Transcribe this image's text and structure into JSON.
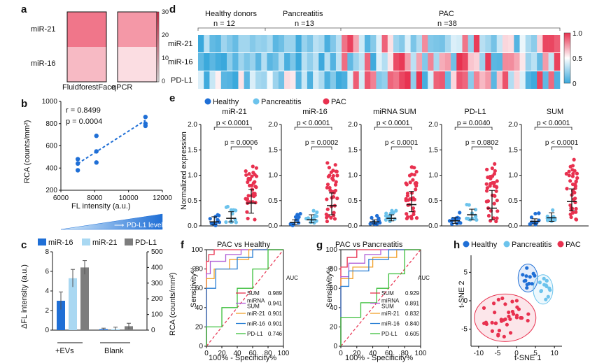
{
  "colors": {
    "healthy": "#1f6fd6",
    "pancreatitis": "#6cc3ec",
    "pac": "#e8314f",
    "heat_red": "#e8314f",
    "heat_blue": "#3aa8dc",
    "grey": "#7d7d7d",
    "light_blue": "#a9d8f2"
  },
  "panel_labels": {
    "a": "a",
    "b": "b",
    "c": "c",
    "d": "d",
    "e": "e",
    "f": "f",
    "g": "g",
    "h": "h"
  },
  "panel_a": {
    "rows": [
      "miR-21",
      "miR-16"
    ],
    "cols": [
      "FluidforestFace",
      "qPCR"
    ],
    "values": [
      [
        20,
        15
      ],
      [
        10,
        5
      ]
    ],
    "colorbar_ticks": [
      "30",
      "20",
      "10",
      "0"
    ]
  },
  "panel_b": {
    "ylabel": "RCA (counts/mm²)",
    "xlabel": "FL intensity (a.u.)",
    "r_text": "r = 0.8499",
    "p_text": "p = 0.0004",
    "xticks": [
      "6000",
      "8000",
      "10000",
      "12000"
    ],
    "yticks": [
      "200",
      "400",
      "600",
      "800",
      "1000"
    ],
    "triangle_label": "PD-L1 level"
  },
  "panel_c": {
    "legend": [
      "miR-16",
      "miR-21",
      "PD-L1"
    ],
    "ylabel_left": "ΔFL intensity (a.u.)",
    "ylabel_right": "RCA (counts/mm²)",
    "yticks_left": [
      "0",
      "2",
      "4",
      "6",
      "8"
    ],
    "yticks_right": [
      "0",
      "100",
      "200",
      "300",
      "400",
      "500"
    ],
    "groups": [
      "+EVs",
      "Blank"
    ]
  },
  "panel_d": {
    "groups": [
      {
        "name": "Healthy donors",
        "n": "n = 12"
      },
      {
        "name": "Pancreatitis",
        "n": "n =13"
      },
      {
        "name": "PAC",
        "n": "n =38"
      }
    ],
    "rows": [
      "miR-21",
      "miR-16",
      "PD-L1"
    ],
    "colorbar_ticks": [
      "1.0",
      "0.5",
      "0"
    ]
  },
  "panel_e": {
    "legend": [
      "Healthy",
      "Pancreatitis",
      "PAC"
    ],
    "ylabel": "Normalized expression",
    "yticks": [
      "0.0",
      "0.5",
      "1.0",
      "1.5",
      "2.0"
    ],
    "subplots": [
      {
        "title": "miR-21",
        "p_top": "p < 0.0001",
        "p_bottom": "p = 0.0006"
      },
      {
        "title": "miR-16",
        "p_top": "p < 0.0001",
        "p_bottom": "p = 0.0002"
      },
      {
        "title": "miRNA SUM",
        "p_top": "p < 0.0001",
        "p_bottom": "p < 0.0001"
      },
      {
        "title": "PD-L1",
        "p_top": "p = 0.0040",
        "p_bottom": "p = 0.0802"
      },
      {
        "title": "SUM",
        "p_top": "p < 0.0001",
        "p_bottom": "p < 0.0001"
      }
    ]
  },
  "panel_f": {
    "title": "PAC vs Healthy",
    "xlabel": "100% - Specificity%",
    "ylabel": "Sensitivity%",
    "ticks": [
      "0",
      "20",
      "40",
      "60",
      "80",
      "100"
    ],
    "auc_header": "AUC",
    "legend": [
      {
        "name": "SUM",
        "auc": "0.989",
        "color": "#e8314f"
      },
      {
        "name": "miRNA\nSUM",
        "auc": "0.941",
        "color": "#b05cd6"
      },
      {
        "name": "miR-21",
        "auc": "0.901",
        "color": "#f2a12b"
      },
      {
        "name": "miR-16",
        "auc": "0.901",
        "color": "#2a7fd4"
      },
      {
        "name": "PD-L1",
        "auc": "0.746",
        "color": "#3cbf3c"
      }
    ]
  },
  "panel_g": {
    "title": "PAC vs Pancreatitis",
    "xlabel": "100% - Specificity%",
    "ylabel": "Sensitivity%",
    "ticks": [
      "0",
      "20",
      "40",
      "60",
      "80",
      "100"
    ],
    "auc_header": "AUC",
    "legend": [
      {
        "name": "SUM",
        "auc": "0.929",
        "color": "#e8314f"
      },
      {
        "name": "miRNA\nSUM",
        "auc": "0.891",
        "color": "#b05cd6"
      },
      {
        "name": "miR-21",
        "auc": "0.832",
        "color": "#f2a12b"
      },
      {
        "name": "miR-16",
        "auc": "0.840",
        "color": "#2a7fd4"
      },
      {
        "name": "PD-L1",
        "auc": "0.605",
        "color": "#3cbf3c"
      }
    ]
  },
  "panel_h": {
    "legend": [
      "Healthy",
      "Pancreatitis",
      "PAC"
    ],
    "xlabel": "t-SNE 1",
    "ylabel": "t-SNE 2",
    "xticks": [
      "-10",
      "-5",
      "0",
      "5",
      "10"
    ],
    "yticks": [
      "5",
      "0",
      "-5"
    ]
  },
  "chart_data": [
    {
      "id": "a",
      "type": "heatmap",
      "rows": [
        "miR-21",
        "miR-16"
      ],
      "cols": [
        "FluidforestFace",
        "qPCR"
      ],
      "values": [
        [
          20,
          15
        ],
        [
          10,
          5
        ]
      ],
      "range": [
        0,
        30
      ]
    },
    {
      "id": "b",
      "type": "scatter",
      "x": [
        7000,
        7000,
        7000,
        8100,
        8100,
        8100,
        11000,
        11000,
        11000
      ],
      "y": [
        380,
        440,
        480,
        450,
        550,
        690,
        780,
        800,
        860
      ],
      "xlim": [
        6000,
        12000
      ],
      "ylim": [
        200,
        1000
      ],
      "fit": {
        "x": [
          7000,
          11000
        ],
        "y": [
          440,
          830
        ]
      }
    },
    {
      "id": "c",
      "type": "bar",
      "categories": [
        "+EVs",
        "Blank"
      ],
      "series": [
        {
          "name": "miR-16",
          "values": [
            3.0,
            0.1
          ],
          "err": [
            0.9,
            0.1
          ]
        },
        {
          "name": "miR-21",
          "values": [
            5.3,
            0.1
          ],
          "err": [
            0.9,
            0.2
          ]
        },
        {
          "name": "PD-L1",
          "values": [
            6.4,
            0.4
          ],
          "err": [
            0.7,
            0.3
          ]
        }
      ],
      "ylim": [
        0,
        8
      ]
    },
    {
      "id": "e",
      "type": "scatter",
      "groups": [
        "Healthy",
        "Pancreatitis",
        "PAC"
      ],
      "ylim": [
        0,
        2.0
      ],
      "subplots": [
        {
          "title": "miR-21",
          "medians": [
            0.08,
            0.15,
            0.45
          ],
          "q1": [
            0.03,
            0.08,
            0.25
          ],
          "q3": [
            0.18,
            0.28,
            0.72
          ],
          "max": [
            0.3,
            0.38,
            1.5
          ]
        },
        {
          "title": "miR-16",
          "medians": [
            0.07,
            0.12,
            0.4
          ],
          "q1": [
            0.03,
            0.06,
            0.22
          ],
          "q3": [
            0.12,
            0.22,
            0.65
          ],
          "max": [
            0.25,
            0.3,
            1.5
          ]
        },
        {
          "title": "miRNA SUM",
          "medians": [
            0.08,
            0.15,
            0.42
          ],
          "q1": [
            0.04,
            0.1,
            0.28
          ],
          "q3": [
            0.12,
            0.22,
            0.68
          ],
          "max": [
            0.2,
            0.3,
            1.5
          ]
        },
        {
          "title": "PD-L1",
          "medians": [
            0.1,
            0.22,
            0.35
          ],
          "q1": [
            0.05,
            0.12,
            0.12
          ],
          "q3": [
            0.16,
            0.33,
            0.7
          ],
          "max": [
            0.3,
            0.42,
            1.5
          ]
        },
        {
          "title": "SUM",
          "medians": [
            0.09,
            0.16,
            0.48
          ],
          "q1": [
            0.04,
            0.09,
            0.3
          ],
          "q3": [
            0.14,
            0.26,
            0.73
          ],
          "max": [
            0.25,
            0.32,
            1.5
          ]
        }
      ]
    },
    {
      "id": "h",
      "type": "scatter",
      "xlim": [
        -12,
        12
      ],
      "ylim": [
        -8,
        8
      ]
    }
  ]
}
